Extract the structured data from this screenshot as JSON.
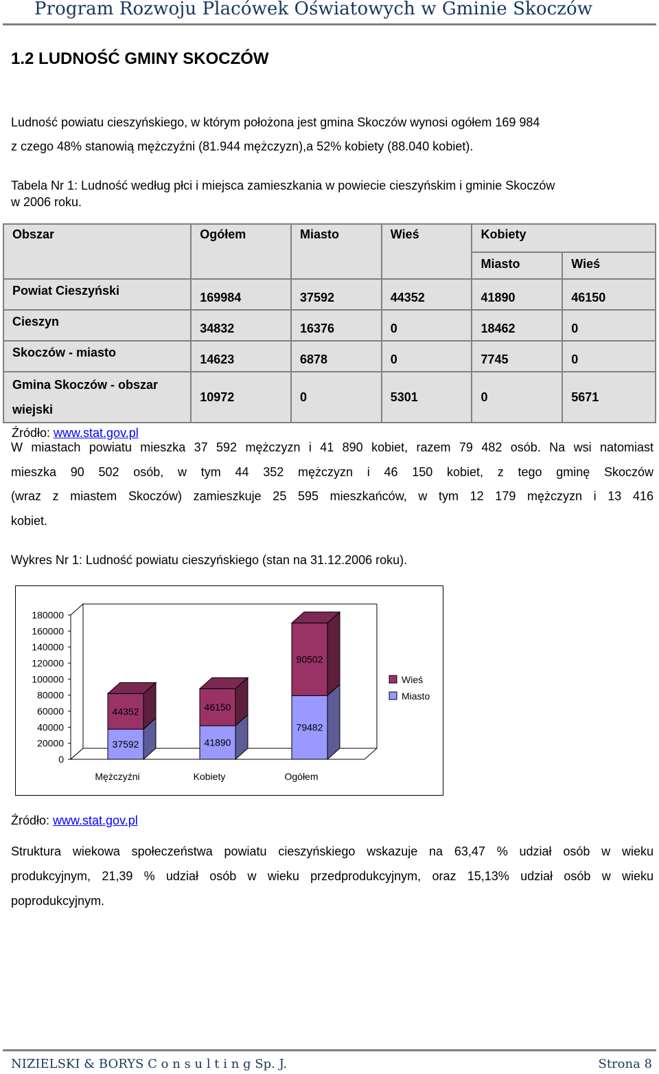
{
  "header": {
    "title": "Program Rozwoju Placówek Oświatowych w Gminie Skoczów"
  },
  "section": {
    "heading": "1.2 LUDNOŚĆ GMINY SKOCZÓW"
  },
  "intro": {
    "line1": "Ludność powiatu cieszyńskiego, w którym położona jest gmina Skoczów wynosi ogółem 169 984",
    "line2": "z czego 48% stanowią mężczyźni (81.944 mężczyzn),a 52% kobiety (88.040 kobiet)."
  },
  "table_caption": {
    "line1": "Tabela Nr 1: Ludność według płci i miejsca zamieszkania w powiecie cieszyńskim i gminie Skoczów",
    "line2": "w 2006 roku."
  },
  "table": {
    "headers": {
      "area": "Obszar",
      "total": "Ogółem",
      "city": "Miasto",
      "village": "Wieś",
      "women": "Kobiety",
      "women_city": "Miasto",
      "women_village": "Wieś"
    },
    "rows": [
      {
        "area": "Powiat Cieszyński",
        "total": "169984",
        "city": "37592",
        "village": "44352",
        "women_city": "41890",
        "women_village": "46150"
      },
      {
        "area": "Cieszyn",
        "total": "34832",
        "city": "16376",
        "village": "0",
        "women_city": "18462",
        "women_village": "0"
      },
      {
        "area": "Skoczów - miasto",
        "total": "14623",
        "city": "6878",
        "village": "0",
        "women_city": "7745",
        "women_village": "0"
      },
      {
        "area_line1": "Gmina Skoczów  - obszar",
        "area_line2": "wiejski",
        "total": "10972",
        "city": "0",
        "village": "5301",
        "women_city": "0",
        "women_village": "5671"
      }
    ],
    "source_label": "Źródło: ",
    "source_link": "www.stat.gov.pl"
  },
  "para2": {
    "line1a": "W miastach powiatu mieszka 37 592 mężczyzn i 41 890 kobiet, razem 79 482 osób.",
    "line1b": " Na wsi natomiast",
    "line2": "mieszka 90 502 osób, w tym 44 352 mężczyzn i 46 150 kobiet, z tego gminę Skoczów",
    "line3": "(wraz z miastem Skoczów) zamieszkuje 25 595 mieszkańców, w tym 12 179 mężczyzn i 13 416",
    "line4": "kobiet."
  },
  "chart_caption": "Wykres Nr 1: Ludność powiatu cieszyńskiego (stan na 31.12.2006 roku).",
  "chart_data": {
    "type": "bar",
    "stacked": true,
    "three_d": true,
    "categories": [
      "Mężczyźni",
      "Kobiety",
      "Ogółem"
    ],
    "series": [
      {
        "name": "Miasto",
        "values": [
          37592,
          41890,
          79482
        ],
        "color": "#9999ff"
      },
      {
        "name": "Wieś",
        "values": [
          44352,
          46150,
          90502
        ],
        "color": "#993366"
      }
    ],
    "ylim": [
      0,
      180000
    ],
    "yticks": [
      "0",
      "20000",
      "40000",
      "60000",
      "80000",
      "100000",
      "120000",
      "140000",
      "160000",
      "180000"
    ],
    "data_labels": [
      [
        "37592",
        "44352"
      ],
      [
        "41890",
        "46150"
      ],
      [
        "79482",
        "90502"
      ]
    ],
    "legend": [
      "Wieś",
      "Miasto"
    ],
    "legend_position": "right",
    "grid": false,
    "title": "",
    "xlabel": "",
    "ylabel": ""
  },
  "chart_source": {
    "label": "Źródło: ",
    "link": "www.stat.gov.pl"
  },
  "para3": {
    "line1": "Struktura wiekowa społeczeństwa powiatu cieszyńskiego wskazuje na 63,47 % udział osób w wieku",
    "line2": "produkcyjnym, 21,39 % udział osób w wieku przedprodukcyjnym, oraz 15,13% udział osób w wieku",
    "line3": "poprodukcyjnym."
  },
  "footer": {
    "company": "NIZIELSKI & BORYS C o n s u l t i n g Sp. J.",
    "page": "Strona 8"
  }
}
